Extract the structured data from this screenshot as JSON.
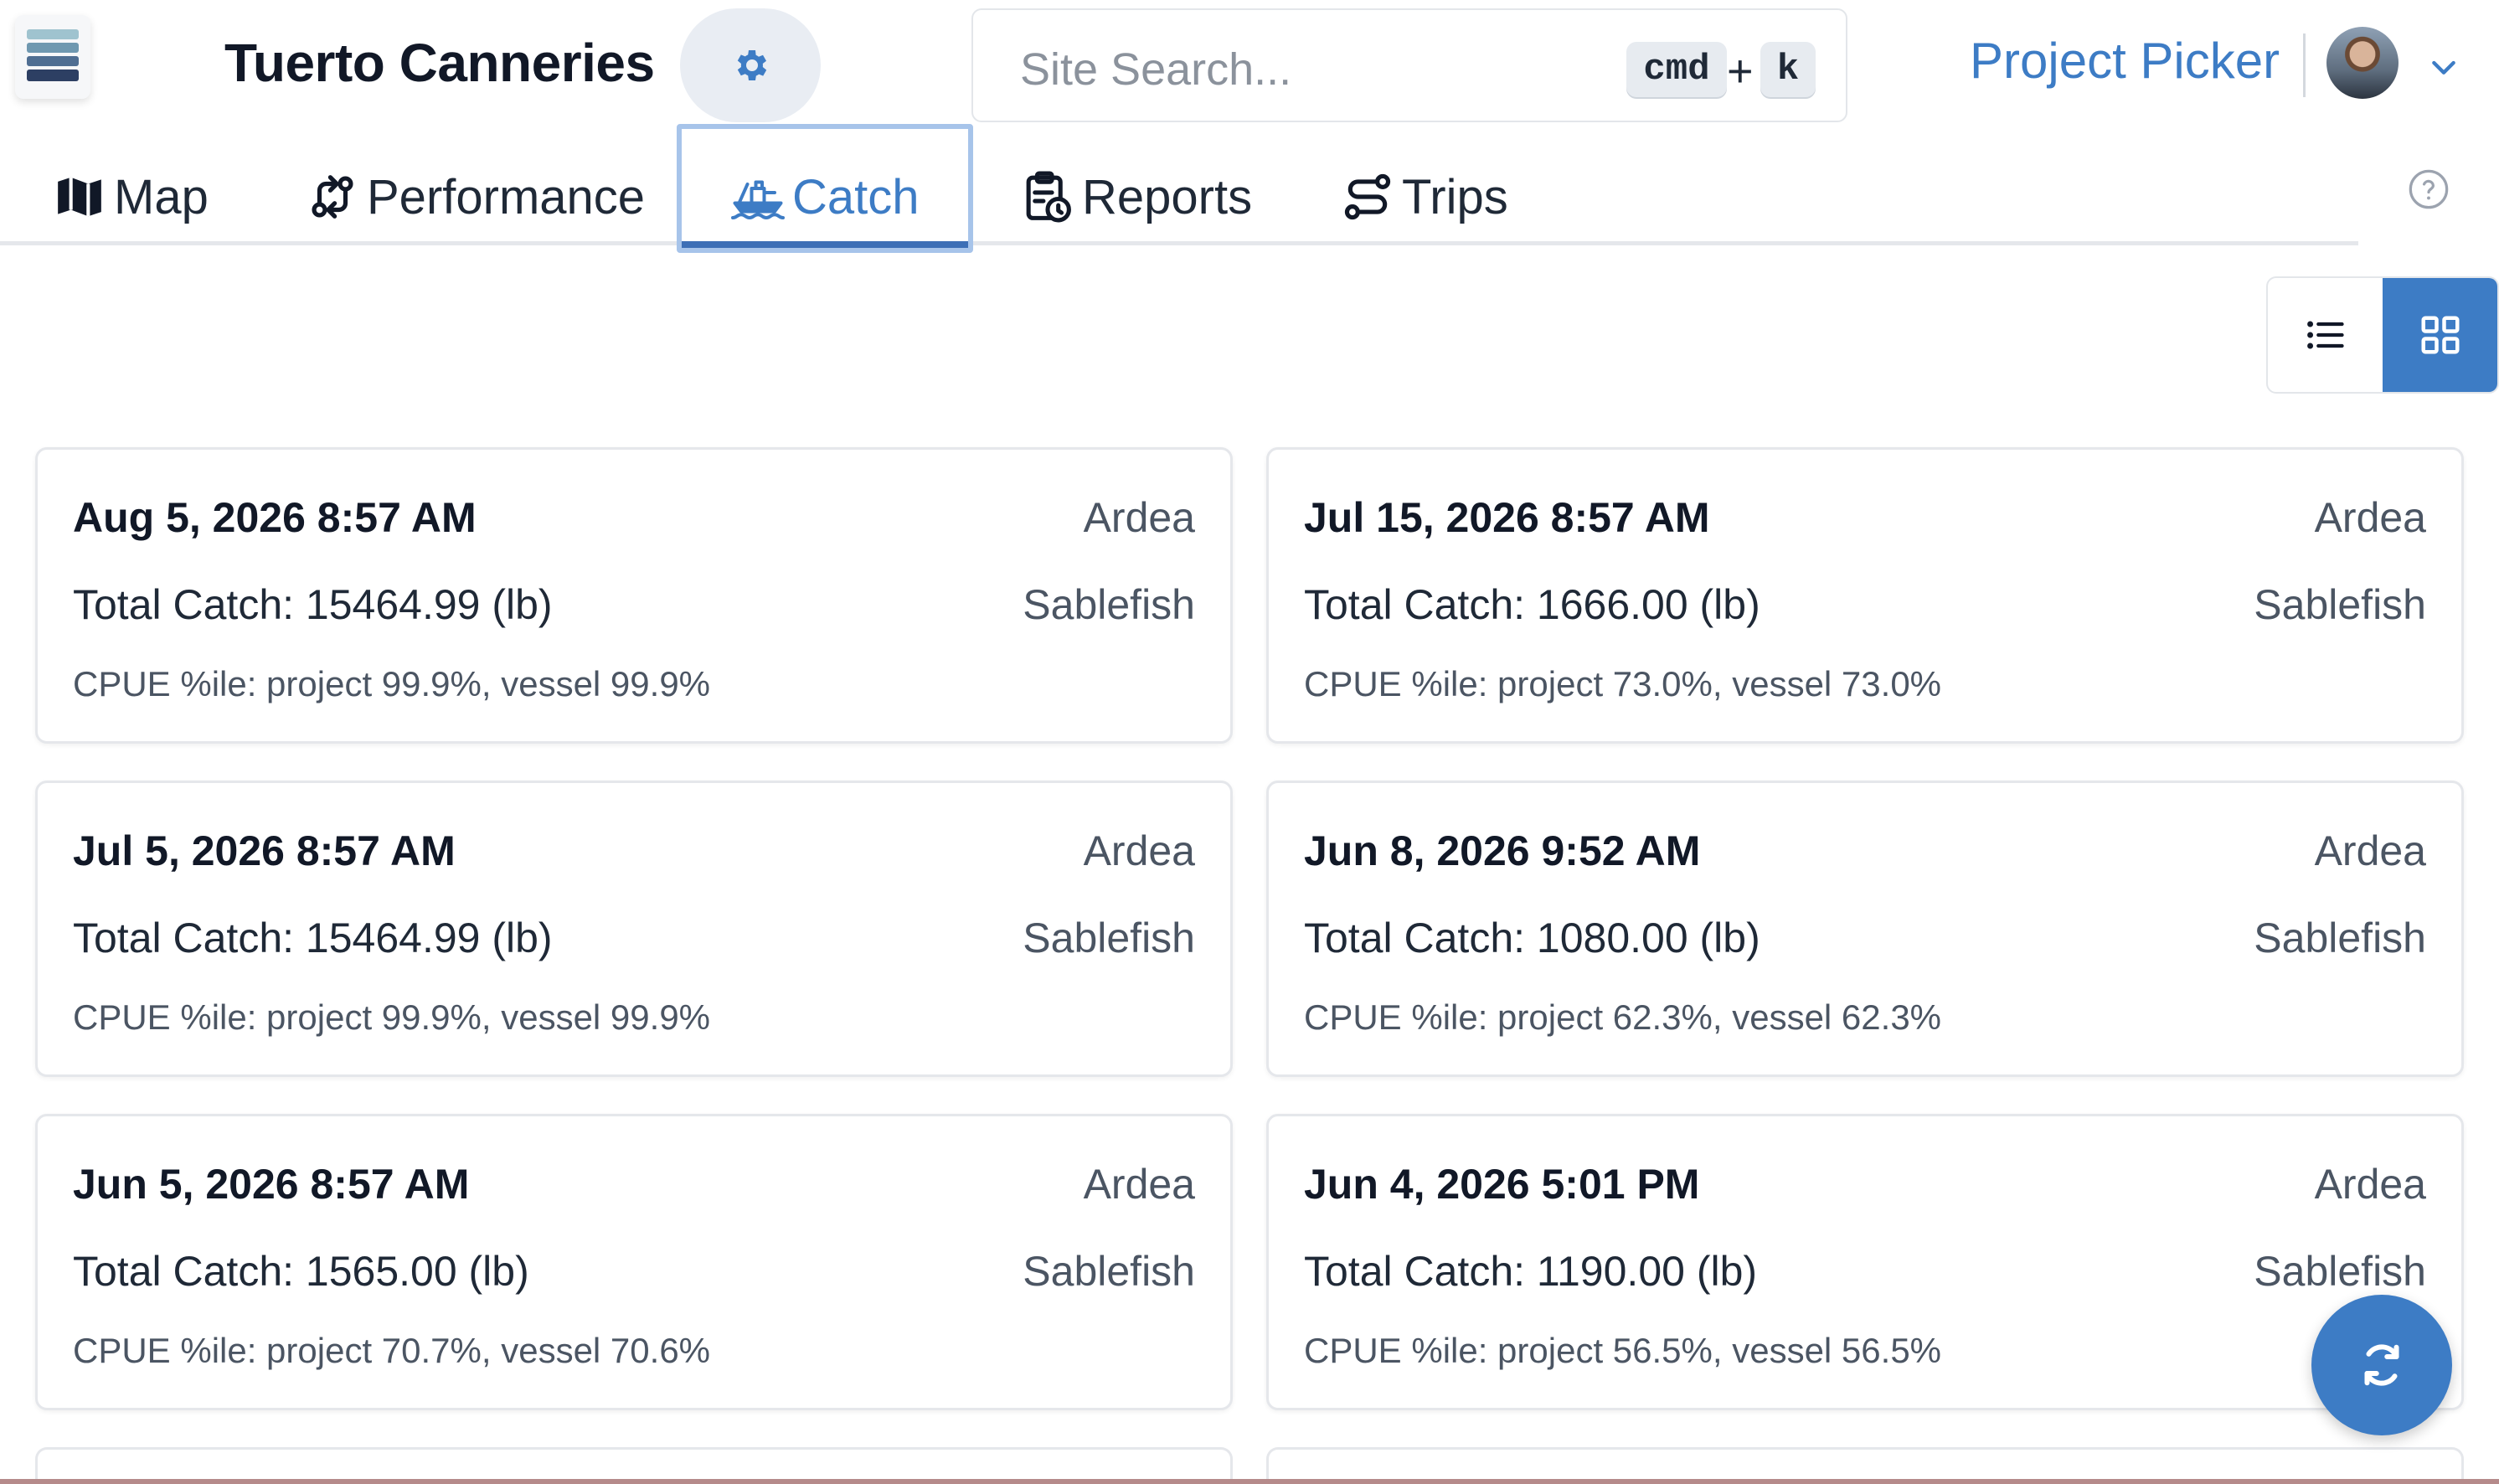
{
  "header": {
    "brand": "Tuerto Canneries",
    "search_placeholder": "Site Search...",
    "shortcut_key_1": "cmd",
    "shortcut_plus": "+",
    "shortcut_key_2": "k",
    "project_picker": "Project Picker"
  },
  "tabs": [
    {
      "label": "Map",
      "icon": "map-icon"
    },
    {
      "label": "Performance",
      "icon": "git-compare-icon"
    },
    {
      "label": "Catch",
      "icon": "fishing-boat-icon",
      "active": true
    },
    {
      "label": "Reports",
      "icon": "clipboard-clock-icon"
    },
    {
      "label": "Trips",
      "icon": "route-icon"
    }
  ],
  "view_toggle": {
    "selected": "grid"
  },
  "accent_color": "#3d7cc5",
  "cards": [
    {
      "date": "Aug 5, 2026 8:57 AM",
      "vessel": "Ardea",
      "total": "Total Catch: 15464.99 (lb)",
      "species": "Sablefish",
      "cpue": "CPUE %ile: project 99.9%, vessel 99.9%"
    },
    {
      "date": "Jul 15, 2026 8:57 AM",
      "vessel": "Ardea",
      "total": "Total Catch: 1666.00 (lb)",
      "species": "Sablefish",
      "cpue": "CPUE %ile: project 73.0%, vessel 73.0%"
    },
    {
      "date": "Jul 5, 2026 8:57 AM",
      "vessel": "Ardea",
      "total": "Total Catch: 15464.99 (lb)",
      "species": "Sablefish",
      "cpue": "CPUE %ile: project 99.9%, vessel 99.9%"
    },
    {
      "date": "Jun 8, 2026 9:52 AM",
      "vessel": "Ardea",
      "total": "Total Catch: 1080.00 (lb)",
      "species": "Sablefish",
      "cpue": "CPUE %ile: project 62.3%, vessel 62.3%"
    },
    {
      "date": "Jun 5, 2026 8:57 AM",
      "vessel": "Ardea",
      "total": "Total Catch: 1565.00 (lb)",
      "species": "Sablefish",
      "cpue": "CPUE %ile: project 70.7%, vessel 70.6%"
    },
    {
      "date": "Jun 4, 2026 5:01 PM",
      "vessel": "Ardea",
      "total": "Total Catch: 1190.00 (lb)",
      "species": "Sablefish",
      "cpue": "CPUE %ile: project 56.5%, vessel 56.5%"
    }
  ]
}
